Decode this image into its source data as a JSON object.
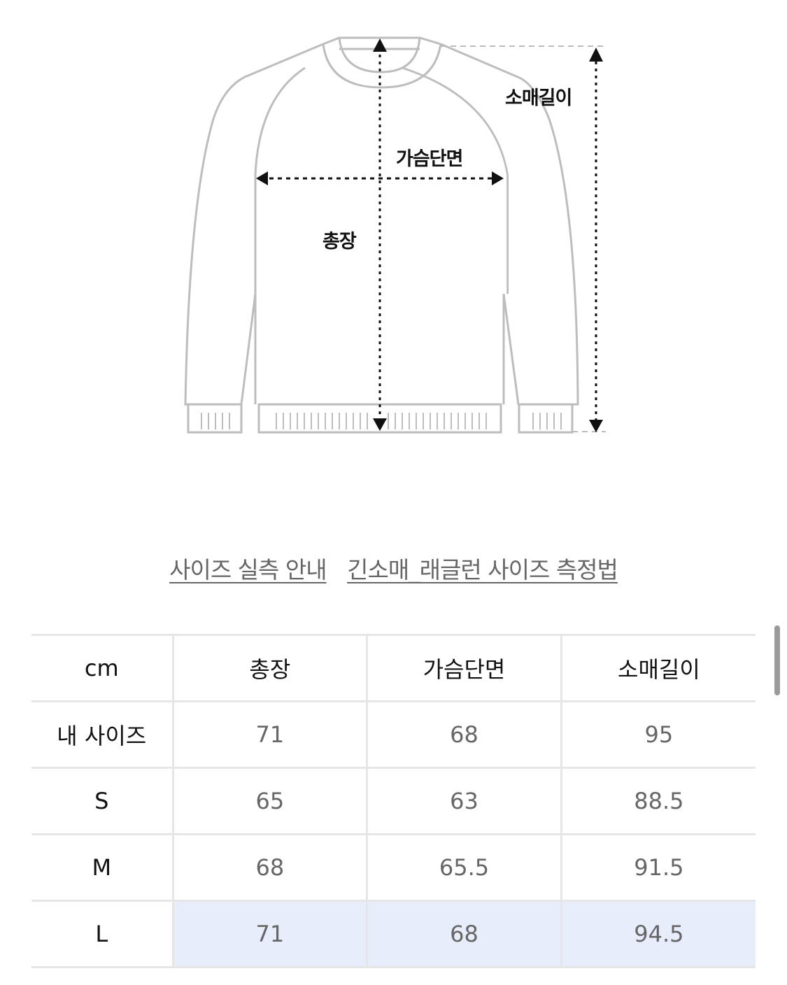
{
  "diagram": {
    "labels": {
      "sleeve_length": "소매길이",
      "chest_width": "가슴단면",
      "total_length": "총장"
    }
  },
  "links": [
    {
      "label": "사이즈 실측 안내"
    },
    {
      "label": "긴소매_래글런 사이즈 측정법"
    }
  ],
  "table": {
    "headers": [
      "cm",
      "총장",
      "가슴단면",
      "소매길이"
    ],
    "rows": [
      {
        "label": "내 사이즈",
        "values": [
          "71",
          "68",
          "95"
        ]
      },
      {
        "label": "S",
        "values": [
          "65",
          "63",
          "88.5"
        ]
      },
      {
        "label": "M",
        "values": [
          "68",
          "65.5",
          "91.5"
        ]
      },
      {
        "label": "L",
        "values": [
          "71",
          "68",
          "94.5"
        ],
        "highlighted": true
      }
    ],
    "highlight_color": "#e8edfc"
  }
}
